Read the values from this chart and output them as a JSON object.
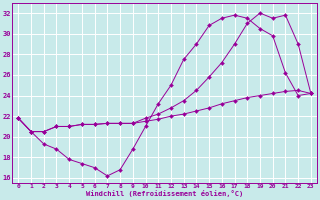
{
  "xlabel": "Windchill (Refroidissement éolien,°C)",
  "bg_color": "#c8eaea",
  "line_color": "#990099",
  "grid_color": "#ffffff",
  "xlim": [
    -0.5,
    23.5
  ],
  "ylim": [
    15.5,
    33.0
  ],
  "yticks": [
    16,
    18,
    20,
    22,
    24,
    26,
    28,
    30,
    32
  ],
  "xticks": [
    0,
    1,
    2,
    3,
    4,
    5,
    6,
    7,
    8,
    9,
    10,
    11,
    12,
    13,
    14,
    15,
    16,
    17,
    18,
    19,
    20,
    21,
    22,
    23
  ],
  "line1_x": [
    0,
    1,
    2,
    3,
    4,
    5,
    6,
    7,
    8,
    9,
    10,
    11,
    12,
    13,
    14,
    15,
    16,
    17,
    18,
    19,
    20,
    21,
    22,
    23
  ],
  "line1_y": [
    21.8,
    20.5,
    19.3,
    18.8,
    17.8,
    17.4,
    17.0,
    16.2,
    16.8,
    18.8,
    21.0,
    23.2,
    25.0,
    27.5,
    29.0,
    30.8,
    31.5,
    31.8,
    31.5,
    30.5,
    29.8,
    26.2,
    24.0,
    24.2
  ],
  "line2_x": [
    0,
    1,
    2,
    3,
    4,
    5,
    6,
    7,
    8,
    9,
    10,
    11,
    12,
    13,
    14,
    15,
    16,
    17,
    18,
    19,
    20,
    21,
    22,
    23
  ],
  "line2_y": [
    21.8,
    20.5,
    20.5,
    21.0,
    21.0,
    21.2,
    21.2,
    21.3,
    21.3,
    21.3,
    21.5,
    21.7,
    22.0,
    22.2,
    22.5,
    22.8,
    23.2,
    23.5,
    23.8,
    24.0,
    24.2,
    24.4,
    24.5,
    24.2
  ],
  "line3_x": [
    0,
    1,
    2,
    3,
    4,
    5,
    6,
    7,
    8,
    9,
    10,
    11,
    12,
    13,
    14,
    15,
    16,
    17,
    18,
    19,
    20,
    21,
    22,
    23
  ],
  "line3_y": [
    21.8,
    20.5,
    20.5,
    21.0,
    21.0,
    21.2,
    21.2,
    21.3,
    21.3,
    21.3,
    21.8,
    22.2,
    22.8,
    23.5,
    24.5,
    25.8,
    27.2,
    29.0,
    31.0,
    32.0,
    31.5,
    31.8,
    29.0,
    24.2
  ]
}
